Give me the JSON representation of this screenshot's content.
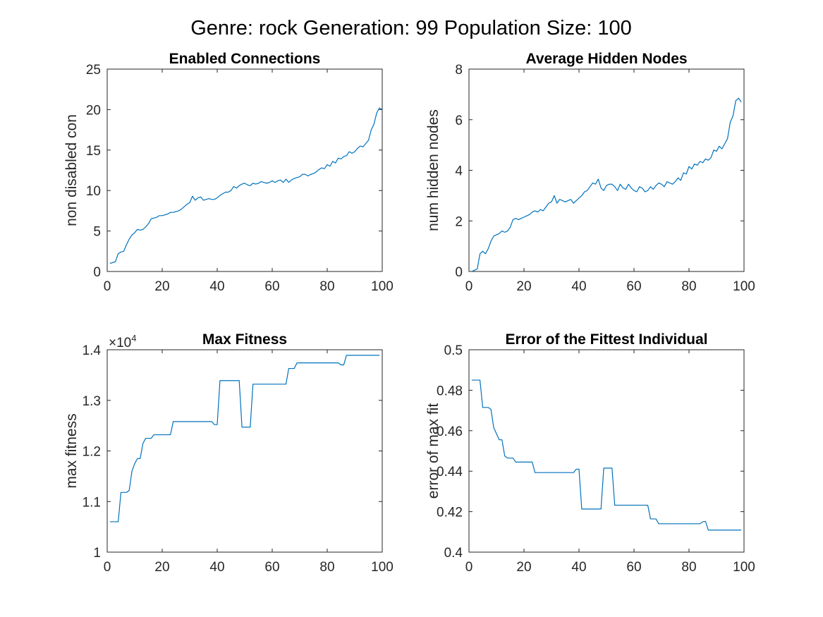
{
  "figure": {
    "suptitle": "Genre: rock Generation: 99 Population Size: 100",
    "line_color": "#0072BD"
  },
  "chart_data": [
    {
      "type": "line",
      "title": "Enabled Connections",
      "xlabel": "",
      "ylabel": "non disabled con",
      "xlim": [
        0,
        100
      ],
      "ylim": [
        0,
        25
      ],
      "xticks": [
        0,
        20,
        40,
        60,
        80,
        100
      ],
      "yticks": [
        0,
        5,
        10,
        15,
        20,
        25
      ],
      "xtick_labels": [
        "0",
        "20",
        "40",
        "60",
        "80",
        "100"
      ],
      "ytick_labels": [
        "0",
        "5",
        "10",
        "15",
        "20",
        "25"
      ],
      "grid": false,
      "series": [
        {
          "x": [
            1,
            2,
            3,
            4,
            5,
            6,
            7,
            8,
            9,
            10,
            11,
            12,
            13,
            14,
            15,
            16,
            17,
            18,
            19,
            20,
            21,
            22,
            23,
            24,
            25,
            26,
            27,
            28,
            29,
            30,
            31,
            32,
            33,
            34,
            35,
            36,
            37,
            38,
            39,
            40,
            41,
            42,
            43,
            44,
            45,
            46,
            47,
            48,
            49,
            50,
            51,
            52,
            53,
            54,
            55,
            56,
            57,
            58,
            59,
            60,
            61,
            62,
            63,
            64,
            65,
            66,
            67,
            68,
            69,
            70,
            71,
            72,
            73,
            74,
            75,
            76,
            77,
            78,
            79,
            80,
            81,
            82,
            83,
            84,
            85,
            86,
            87,
            88,
            89,
            90,
            91,
            92,
            93,
            94,
            95,
            96,
            97,
            98,
            99,
            100
          ],
          "values": [
            1.0,
            1.1,
            1.2,
            2.2,
            2.4,
            2.5,
            3.3,
            4.0,
            4.5,
            4.8,
            5.2,
            5.1,
            5.2,
            5.5,
            5.9,
            6.5,
            6.6,
            6.7,
            6.9,
            6.9,
            7.0,
            7.1,
            7.3,
            7.3,
            7.4,
            7.5,
            7.7,
            8.0,
            8.3,
            8.5,
            9.3,
            8.8,
            9.1,
            9.2,
            8.8,
            8.9,
            9.0,
            8.9,
            8.9,
            9.1,
            9.4,
            9.6,
            9.8,
            9.8,
            10.0,
            10.5,
            10.3,
            10.6,
            10.8,
            10.9,
            10.7,
            10.6,
            10.9,
            10.8,
            10.9,
            11.1,
            11.0,
            10.9,
            11.0,
            11.2,
            11.0,
            11.2,
            11.3,
            11.0,
            11.4,
            11.0,
            11.3,
            11.5,
            11.6,
            11.7,
            12.0,
            12.0,
            11.8,
            12.0,
            12.1,
            12.3,
            12.6,
            12.8,
            12.7,
            13.2,
            13.0,
            13.6,
            13.4,
            14.0,
            13.9,
            14.2,
            14.3,
            14.8,
            14.6,
            14.8,
            15.2,
            15.5,
            15.4,
            15.8,
            16.2,
            17.5,
            18.2,
            19.6,
            20.2,
            20.0
          ]
        }
      ]
    },
    {
      "type": "line",
      "title": "Average Hidden Nodes",
      "xlabel": "",
      "ylabel": "num hidden nodes",
      "xlim": [
        0,
        100
      ],
      "ylim": [
        0,
        8
      ],
      "xticks": [
        0,
        20,
        40,
        60,
        80,
        100
      ],
      "yticks": [
        0,
        2,
        4,
        6,
        8
      ],
      "xtick_labels": [
        "0",
        "20",
        "40",
        "60",
        "80",
        "100"
      ],
      "ytick_labels": [
        "0",
        "2",
        "4",
        "6",
        "8"
      ],
      "grid": false,
      "series": [
        {
          "x": [
            1,
            2,
            3,
            4,
            5,
            6,
            7,
            8,
            9,
            10,
            11,
            12,
            13,
            14,
            15,
            16,
            17,
            18,
            19,
            20,
            21,
            22,
            23,
            24,
            25,
            26,
            27,
            28,
            29,
            30,
            31,
            32,
            33,
            34,
            35,
            36,
            37,
            38,
            39,
            40,
            41,
            42,
            43,
            44,
            45,
            46,
            47,
            48,
            49,
            50,
            51,
            52,
            53,
            54,
            55,
            56,
            57,
            58,
            59,
            60,
            61,
            62,
            63,
            64,
            65,
            66,
            67,
            68,
            69,
            70,
            71,
            72,
            73,
            74,
            75,
            76,
            77,
            78,
            79,
            80,
            81,
            82,
            83,
            84,
            85,
            86,
            87,
            88,
            89,
            90,
            91,
            92,
            93,
            94,
            95,
            96,
            97,
            98,
            99
          ],
          "values": [
            0.0,
            0.05,
            0.1,
            0.7,
            0.8,
            0.7,
            0.9,
            1.2,
            1.4,
            1.45,
            1.5,
            1.6,
            1.55,
            1.6,
            1.75,
            2.05,
            2.1,
            2.05,
            2.1,
            2.15,
            2.2,
            2.25,
            2.35,
            2.4,
            2.35,
            2.45,
            2.4,
            2.55,
            2.7,
            2.75,
            3.0,
            2.7,
            2.85,
            2.8,
            2.75,
            2.8,
            2.85,
            2.7,
            2.8,
            2.9,
            3.0,
            3.15,
            3.2,
            3.35,
            3.5,
            3.45,
            3.65,
            3.3,
            3.2,
            3.4,
            3.45,
            3.45,
            3.35,
            3.2,
            3.45,
            3.3,
            3.25,
            3.45,
            3.3,
            3.2,
            3.15,
            3.35,
            3.3,
            3.15,
            3.2,
            3.35,
            3.25,
            3.4,
            3.5,
            3.45,
            3.35,
            3.55,
            3.5,
            3.45,
            3.55,
            3.7,
            3.6,
            3.9,
            3.85,
            4.15,
            4.05,
            4.25,
            4.2,
            4.35,
            4.3,
            4.45,
            4.4,
            4.5,
            4.8,
            4.75,
            4.95,
            4.85,
            5.05,
            5.25,
            5.9,
            6.15,
            6.75,
            6.85,
            6.7
          ]
        }
      ]
    },
    {
      "type": "line",
      "title": "Max Fitness",
      "xlabel": "",
      "ylabel": "max fitness",
      "xlim": [
        0,
        100
      ],
      "ylim": [
        1.0,
        1.4
      ],
      "xticks": [
        0,
        20,
        40,
        60,
        80,
        100
      ],
      "yticks": [
        1.0,
        1.1,
        1.2,
        1.3,
        1.4
      ],
      "xtick_labels": [
        "0",
        "20",
        "40",
        "60",
        "80",
        "100"
      ],
      "ytick_labels": [
        "1",
        "1.1",
        "1.2",
        "1.3",
        "1.4"
      ],
      "y_exponent_label": "×10",
      "y_exponent_power": "4",
      "grid": false,
      "series": [
        {
          "x": [
            1,
            2,
            3,
            4,
            5,
            6,
            7,
            8,
            9,
            10,
            11,
            12,
            13,
            14,
            15,
            16,
            17,
            18,
            19,
            20,
            21,
            22,
            23,
            24,
            25,
            26,
            27,
            28,
            29,
            30,
            31,
            32,
            33,
            34,
            35,
            36,
            37,
            38,
            39,
            40,
            41,
            42,
            43,
            44,
            45,
            46,
            47,
            48,
            49,
            50,
            51,
            52,
            53,
            54,
            55,
            56,
            57,
            58,
            59,
            60,
            61,
            62,
            63,
            64,
            65,
            66,
            67,
            68,
            69,
            70,
            71,
            72,
            73,
            74,
            75,
            76,
            77,
            78,
            79,
            80,
            81,
            82,
            83,
            84,
            85,
            86,
            87,
            88,
            89,
            90,
            91,
            92,
            93,
            94,
            95,
            96,
            97,
            98,
            99
          ],
          "values": [
            1.06,
            1.06,
            1.06,
            1.06,
            1.118,
            1.118,
            1.118,
            1.122,
            1.16,
            1.175,
            1.185,
            1.185,
            1.215,
            1.225,
            1.225,
            1.225,
            1.232,
            1.232,
            1.232,
            1.232,
            1.232,
            1.232,
            1.232,
            1.258,
            1.258,
            1.258,
            1.258,
            1.258,
            1.258,
            1.258,
            1.258,
            1.258,
            1.258,
            1.258,
            1.258,
            1.258,
            1.258,
            1.258,
            1.252,
            1.252,
            1.339,
            1.339,
            1.339,
            1.339,
            1.339,
            1.339,
            1.339,
            1.339,
            1.247,
            1.247,
            1.247,
            1.247,
            1.332,
            1.332,
            1.332,
            1.332,
            1.332,
            1.332,
            1.332,
            1.332,
            1.332,
            1.332,
            1.332,
            1.332,
            1.332,
            1.363,
            1.363,
            1.363,
            1.374,
            1.374,
            1.374,
            1.374,
            1.374,
            1.374,
            1.374,
            1.374,
            1.374,
            1.374,
            1.374,
            1.374,
            1.374,
            1.374,
            1.374,
            1.374,
            1.37,
            1.37,
            1.389,
            1.389,
            1.389,
            1.389,
            1.389,
            1.389,
            1.389,
            1.389,
            1.389,
            1.389,
            1.389,
            1.389,
            1.389
          ]
        }
      ]
    },
    {
      "type": "line",
      "title": "Error of the Fittest Individual",
      "xlabel": "",
      "ylabel": "error of max fit",
      "xlim": [
        0,
        100
      ],
      "ylim": [
        0.4,
        0.5
      ],
      "xticks": [
        0,
        20,
        40,
        60,
        80,
        100
      ],
      "yticks": [
        0.4,
        0.42,
        0.44,
        0.46,
        0.48,
        0.5
      ],
      "xtick_labels": [
        "0",
        "20",
        "40",
        "60",
        "80",
        "100"
      ],
      "ytick_labels": [
        "0.4",
        "0.42",
        "0.44",
        "0.46",
        "0.48",
        "0.5"
      ],
      "grid": false,
      "series": [
        {
          "x": [
            1,
            2,
            3,
            4,
            5,
            6,
            7,
            8,
            9,
            10,
            11,
            12,
            13,
            14,
            15,
            16,
            17,
            18,
            19,
            20,
            21,
            22,
            23,
            24,
            25,
            26,
            27,
            28,
            29,
            30,
            31,
            32,
            33,
            34,
            35,
            36,
            37,
            38,
            39,
            40,
            41,
            42,
            43,
            44,
            45,
            46,
            47,
            48,
            49,
            50,
            51,
            52,
            53,
            54,
            55,
            56,
            57,
            58,
            59,
            60,
            61,
            62,
            63,
            64,
            65,
            66,
            67,
            68,
            69,
            70,
            71,
            72,
            73,
            74,
            75,
            76,
            77,
            78,
            79,
            80,
            81,
            82,
            83,
            84,
            85,
            86,
            87,
            88,
            89,
            90,
            91,
            92,
            93,
            94,
            95,
            96,
            97,
            98,
            99
          ],
          "values": [
            0.485,
            0.485,
            0.485,
            0.485,
            0.4715,
            0.4715,
            0.4715,
            0.4705,
            0.4615,
            0.4585,
            0.4555,
            0.4555,
            0.4475,
            0.4465,
            0.4465,
            0.4465,
            0.4445,
            0.4445,
            0.4445,
            0.4445,
            0.4445,
            0.4445,
            0.4445,
            0.4393,
            0.4393,
            0.4393,
            0.4393,
            0.4393,
            0.4393,
            0.4393,
            0.4393,
            0.4393,
            0.4393,
            0.4393,
            0.4393,
            0.4393,
            0.4393,
            0.4393,
            0.441,
            0.441,
            0.4213,
            0.4213,
            0.4213,
            0.4213,
            0.4213,
            0.4213,
            0.4213,
            0.4213,
            0.4415,
            0.4415,
            0.4415,
            0.4415,
            0.4232,
            0.4232,
            0.4232,
            0.4232,
            0.4232,
            0.4232,
            0.4232,
            0.4232,
            0.4232,
            0.4232,
            0.4232,
            0.4232,
            0.4232,
            0.4164,
            0.4164,
            0.4164,
            0.414,
            0.414,
            0.414,
            0.414,
            0.414,
            0.414,
            0.414,
            0.414,
            0.414,
            0.414,
            0.414,
            0.414,
            0.414,
            0.414,
            0.414,
            0.414,
            0.415,
            0.4152,
            0.4109,
            0.4109,
            0.4109,
            0.4109,
            0.4109,
            0.4109,
            0.4109,
            0.4109,
            0.4109,
            0.4109,
            0.4109,
            0.4109,
            0.4109
          ]
        }
      ]
    }
  ]
}
